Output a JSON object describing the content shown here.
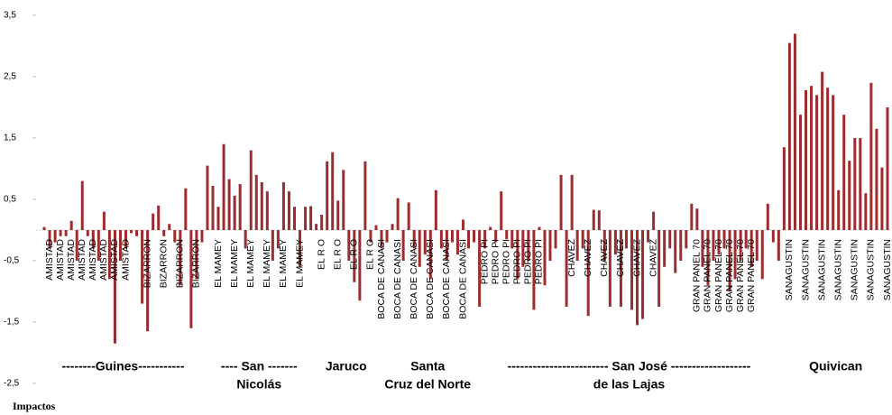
{
  "chart_data": {
    "type": "bar",
    "x_label": "Impactos",
    "color": "#9b2d30",
    "ylim": [
      -2.5,
      3.5
    ],
    "yticks": [
      {
        "value": 3.5,
        "label": "3,5"
      },
      {
        "value": 2.5,
        "label": "2,5"
      },
      {
        "value": 1.5,
        "label": "1,5"
      },
      {
        "value": 0.5,
        "label": "0,5"
      },
      {
        "value": -0.5,
        "label": "-0,5"
      },
      {
        "value": -1.5,
        "label": "-1,5"
      },
      {
        "value": -2.5,
        "label": "-2,5"
      }
    ],
    "groups": [
      {
        "label": [
          "--------Guines-----------"
        ],
        "categories": [
          null,
          "AMISTAD",
          null,
          "AMISTAD",
          null,
          "AMISTAD",
          null,
          "AMISTAD",
          null,
          "AMISTAD",
          null,
          "AMISTAD",
          null,
          "AMISTAD",
          null,
          "AMISTAD",
          null,
          null,
          null,
          "BIZARRON",
          null,
          null,
          "BIZARRON",
          null,
          null,
          "BIZARRON",
          null,
          null,
          "BIZARRON",
          null
        ],
        "values": [
          0.05,
          -0.3,
          -0.2,
          -0.1,
          -0.1,
          0.15,
          -0.5,
          0.8,
          -0.1,
          -0.3,
          -0.5,
          0.3,
          -0.8,
          -1.85,
          -0.5,
          -0.3,
          -0.05,
          -0.1,
          -1.2,
          -1.65,
          0.27,
          0.4,
          -0.1,
          0.1,
          -0.2,
          -0.9,
          0.68,
          -1.6,
          -0.8,
          -0.2
        ]
      },
      {
        "label": [
          "---- San -------",
          "Nicolás"
        ],
        "categories": [
          null,
          null,
          "EL MAMEY",
          null,
          null,
          "EL MAMEY",
          null,
          null,
          "EL MAMEY",
          null,
          null,
          "EL MAMEY",
          null,
          null,
          "EL MAMEY",
          null,
          null,
          "EL MAMEY",
          null,
          null
        ],
        "values": [
          1.05,
          0.72,
          0.38,
          1.4,
          0.83,
          0.56,
          0.75,
          -0.3,
          1.3,
          0.9,
          0.78,
          0.63,
          -0.5,
          -0.3,
          0.78,
          0.63,
          0.38,
          -0.6,
          0.38,
          0.39
        ]
      },
      {
        "label": [
          "Jaruco"
        ],
        "categories": [
          null,
          "EL R O",
          null,
          null,
          "EL R O",
          null,
          null,
          "EL R O",
          null,
          null,
          "EL R O",
          null
        ],
        "values": [
          0.1,
          0.25,
          1.12,
          1.27,
          0.48,
          0.98,
          -0.5,
          -0.85,
          -1.15,
          1.12,
          -0.2,
          0.08
        ]
      },
      {
        "label": [
          "Santa",
          "Cruz del Norte"
        ],
        "categories": [
          "BOCA DE CANASI",
          null,
          null,
          "BOCA DE CANASI",
          null,
          null,
          "BOCA DE CANASI",
          null,
          null,
          "BOCA DE CANASI",
          null,
          null,
          "BOCA DE CANASI",
          null,
          null,
          "BOCA DE CANASI",
          null,
          null
        ],
        "values": [
          -0.3,
          -0.2,
          0.1,
          0.52,
          -0.5,
          0.45,
          -0.3,
          -0.6,
          -0.4,
          -0.8,
          0.65,
          -0.3,
          -0.5,
          -0.2,
          -0.4,
          0.17,
          -0.3,
          -0.2
        ]
      },
      {
        "label": [
          "------------------------ San José -------------------",
          "de las Lajas"
        ],
        "categories": [
          null,
          "PEDRO PI",
          null,
          "PEDRO PI",
          null,
          "PEDRO PI",
          null,
          "PEDRO PI",
          null,
          "PEDRO PI",
          null,
          "PEDRO PI",
          null,
          null,
          null,
          null,
          null,
          "CHAVEZ",
          null,
          null,
          "CHAVEZ",
          null,
          null,
          "CHAVEZ",
          null,
          null,
          "CHAVEZ",
          null,
          null,
          "CHAVEZ",
          null,
          null,
          "CHAVEZ",
          null,
          null,
          null,
          null,
          null,
          null,
          null,
          "GRAN PANEL 70",
          null,
          "GRAN PANEL 70",
          null,
          "GRAN PANEL 70",
          null,
          "GRAN PANEL 70",
          null,
          "GRAN PANEL 70",
          null,
          "GRAN PANEL 70",
          null,
          null,
          null,
          null,
          null
        ],
        "values": [
          -1.25,
          -0.3,
          0.05,
          -0.2,
          0.63,
          -0.15,
          -0.3,
          -0.8,
          -0.6,
          -0.5,
          -1.3,
          0.05,
          -0.9,
          -0.5,
          -0.3,
          0.9,
          -1.25,
          0.9,
          -0.5,
          -0.3,
          -1.4,
          0.33,
          0.32,
          -0.5,
          -1.25,
          -0.4,
          -1.25,
          -0.3,
          -1.3,
          -1.55,
          -1.45,
          -0.2,
          0.3,
          -1.25,
          -0.6,
          -0.3,
          -0.7,
          -0.5,
          -0.3,
          0.43,
          0.35,
          -0.6,
          -0.9,
          -0.5,
          -0.4,
          -0.3,
          -1.0,
          -0.8,
          -0.5,
          -0.3,
          -0.6,
          -0.5,
          -0.8,
          0.43,
          -0.2,
          -0.5
        ]
      },
      {
        "label": [
          "Quivican"
        ],
        "categories": [
          null,
          "SANAGUSTIN",
          null,
          null,
          "SANAGUSTIN",
          null,
          null,
          "SANAGUSTIN",
          null,
          null,
          "SANAGUSTIN",
          null,
          null,
          "SANAGUSTIN",
          null,
          null,
          "SANAGUSTIN",
          null,
          null,
          "SANAGUSTIN"
        ],
        "values": [
          1.35,
          3.05,
          3.2,
          1.88,
          2.28,
          2.35,
          2.2,
          2.58,
          2.32,
          2.2,
          0.65,
          1.88,
          1.13,
          1.5,
          1.5,
          0.6,
          2.4,
          1.65,
          1.02,
          2.0
        ]
      }
    ]
  }
}
